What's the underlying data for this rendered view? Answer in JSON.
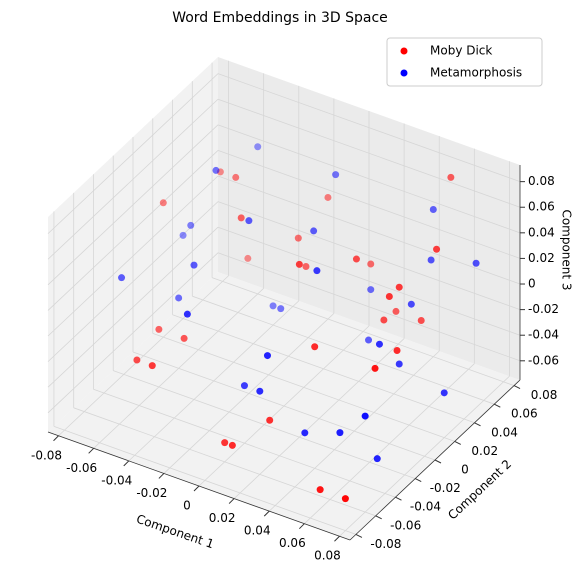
{
  "chart_data": {
    "type": "scatter3d",
    "title": "Word Embeddings in 3D Space",
    "xlabel": "Component 1",
    "ylabel": "Component 2",
    "zlabel": "Component 3",
    "xlim": [
      -0.086,
      0.086
    ],
    "ylim": [
      -0.086,
      0.086
    ],
    "zlim": [
      -0.075,
      0.093
    ],
    "xticks": [
      -0.08,
      -0.06,
      -0.04,
      -0.02,
      0.0,
      0.02,
      0.04,
      0.06,
      0.08
    ],
    "yticks": [
      -0.08,
      -0.06,
      -0.04,
      -0.02,
      0.0,
      0.02,
      0.04,
      0.06,
      0.08
    ],
    "zticks": [
      -0.06,
      -0.04,
      -0.02,
      0.0,
      0.02,
      0.04,
      0.06,
      0.08
    ],
    "grid": true,
    "legend": "upper right",
    "series": [
      {
        "name": "Moby Dick",
        "color": "#ff0000",
        "x": [
          -0.05,
          0.03,
          0.06,
          -0.02,
          0.07,
          -0.06,
          0.01,
          0.04,
          -0.03,
          0.08,
          -0.07,
          0.02,
          -0.01,
          0.05,
          -0.04,
          0.06,
          0.0,
          -0.08,
          0.03,
          0.07,
          -0.05,
          0.01,
          -0.02,
          0.04,
          0.08,
          -0.06,
          0.02,
          0.05,
          -0.03,
          0.06
        ],
        "y": [
          -0.06,
          0.02,
          -0.07,
          0.05,
          0.03,
          -0.02,
          0.07,
          -0.04,
          0.01,
          -0.08,
          0.06,
          -0.05,
          0.04,
          0.08,
          -0.03,
          0.0,
          -0.06,
          0.02,
          0.06,
          -0.01,
          0.04,
          -0.07,
          0.08,
          0.03,
          -0.05,
          0.07,
          -0.02,
          0.05,
          -0.08,
          0.01
        ],
        "z": [
          -0.02,
          0.04,
          -0.06,
          0.01,
          0.06,
          -0.03,
          -0.01,
          0.02,
          0.05,
          -0.05,
          0.03,
          -0.04,
          0.0,
          0.07,
          -0.02,
          0.04,
          -0.06,
          0.03,
          -0.03,
          0.01,
          0.05,
          -0.05,
          0.02,
          -0.01,
          0.03,
          -0.04,
          0.06,
          -0.02,
          0.0,
          0.04
        ]
      },
      {
        "name": "Metamorphosis",
        "color": "#0000ff",
        "x": [
          -0.07,
          0.04,
          -0.01,
          0.06,
          -0.04,
          0.02,
          0.08,
          -0.06,
          0.0,
          0.05,
          -0.02,
          0.07,
          -0.08,
          0.03,
          -0.05,
          0.01,
          0.06,
          -0.03,
          0.04,
          -0.07,
          0.02,
          0.08,
          -0.01,
          0.05,
          -0.04,
          0.03,
          0.07,
          -0.06,
          0.0,
          0.06
        ],
        "y": [
          0.03,
          -0.05,
          0.07,
          0.01,
          -0.02,
          0.05,
          -0.06,
          0.08,
          -0.04,
          0.06,
          0.0,
          -0.03,
          0.04,
          -0.07,
          0.02,
          0.07,
          -0.01,
          0.05,
          0.08,
          -0.04,
          -0.06,
          0.02,
          -0.08,
          0.04,
          0.06,
          -0.02,
          0.07,
          0.0,
          0.03,
          -0.05
        ],
        "z": [
          0.01,
          -0.04,
          0.05,
          -0.02,
          0.03,
          -0.05,
          0.0,
          0.04,
          -0.03,
          0.02,
          0.06,
          -0.06,
          -0.01,
          0.03,
          0.07,
          -0.03,
          0.01,
          -0.05,
          0.04,
          0.02,
          -0.01,
          -0.04,
          0.05,
          0.0,
          -0.06,
          0.06,
          0.02,
          -0.02,
          0.04,
          -0.03
        ]
      }
    ]
  }
}
